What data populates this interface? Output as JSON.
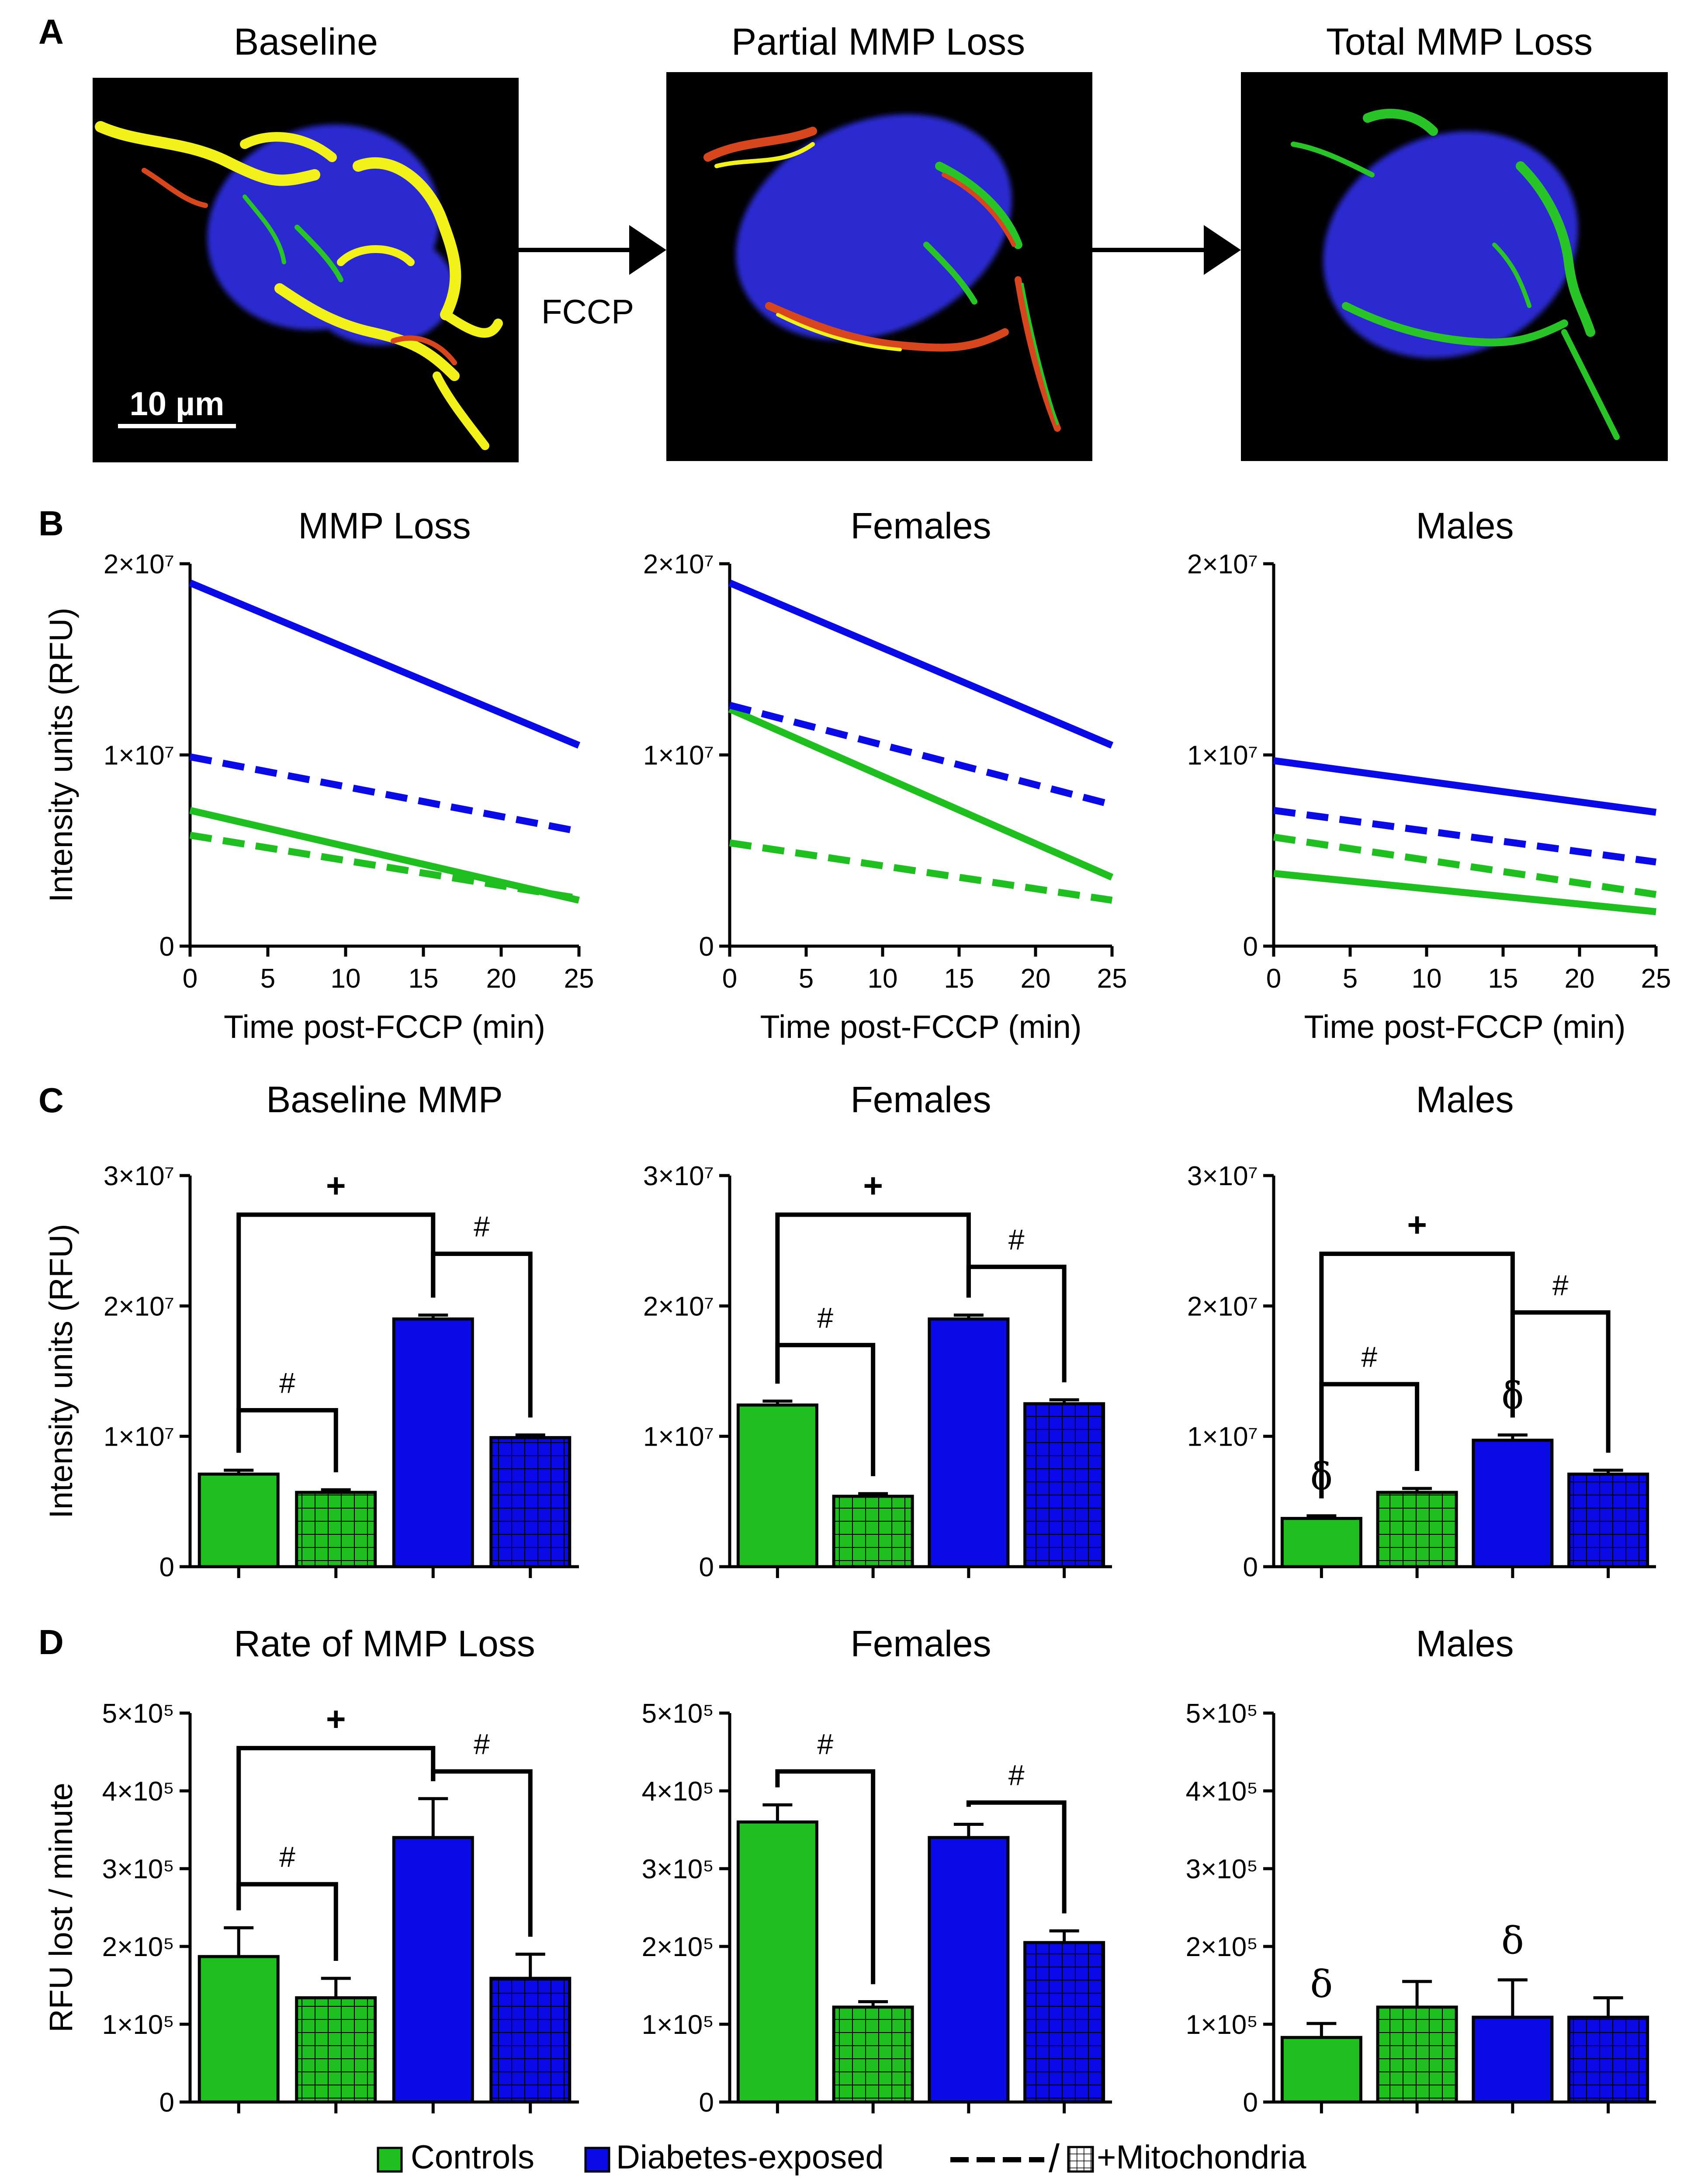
{
  "colors": {
    "control": "#1fbf1f",
    "diabetes": "#0a0ae6",
    "axis": "#000000",
    "micro_bg": "#000000",
    "nucleus": "#2a2ad0",
    "mito_yellow": "#f2f21a",
    "mito_red": "#d8461e",
    "mito_green": "#28c428"
  },
  "panel_letters": [
    "A",
    "B",
    "C",
    "D"
  ],
  "panel_a": {
    "images": [
      {
        "title": "Baseline"
      },
      {
        "title": "Partial MMP Loss"
      },
      {
        "title": "Total MMP Loss"
      }
    ],
    "arrow_label": "FCCP",
    "scale_bar_label": "10 µm"
  },
  "legend": {
    "controls": "Controls",
    "diabetes": "Diabetes-exposed",
    "mito_slash": "/",
    "mito_label": "+Mitochondria"
  },
  "chart_data": [
    {
      "panel": "B",
      "type": "line",
      "title": "MMP Loss",
      "xlabel": "Time post-FCCP (min)",
      "ylabel": "Intensity units (RFU)",
      "xlim": [
        0,
        25
      ],
      "ylim": [
        0,
        20000000
      ],
      "xticks": [
        "0",
        "5",
        "10",
        "15",
        "20",
        "25"
      ],
      "yticks": [
        "0",
        "1×10⁷",
        "2×10⁷"
      ],
      "series": [
        {
          "name": "Controls",
          "color": "control",
          "dashed": false,
          "x": [
            0,
            25
          ],
          "y": [
            7100000,
            2400000
          ]
        },
        {
          "name": "Controls +Mitochondria",
          "color": "control",
          "dashed": true,
          "x": [
            0,
            25
          ],
          "y": [
            5800000,
            2500000
          ]
        },
        {
          "name": "Diabetes-exposed",
          "color": "diabetes",
          "dashed": false,
          "x": [
            0,
            25
          ],
          "y": [
            19000000,
            10500000
          ]
        },
        {
          "name": "Diabetes-exposed +Mitochondria",
          "color": "diabetes",
          "dashed": true,
          "x": [
            0,
            25
          ],
          "y": [
            9900000,
            6000000
          ]
        }
      ]
    },
    {
      "panel": "B",
      "type": "line",
      "title": "Females",
      "xlabel": "Time post-FCCP (min)",
      "ylabel": "",
      "xlim": [
        0,
        25
      ],
      "ylim": [
        0,
        20000000
      ],
      "xticks": [
        "0",
        "5",
        "10",
        "15",
        "20",
        "25"
      ],
      "yticks": [
        "0",
        "1×10⁷",
        "2×10⁷"
      ],
      "series": [
        {
          "name": "Controls",
          "color": "control",
          "dashed": false,
          "x": [
            0,
            25
          ],
          "y": [
            12400000,
            3600000
          ]
        },
        {
          "name": "Controls +Mitochondria",
          "color": "control",
          "dashed": true,
          "x": [
            0,
            25
          ],
          "y": [
            5400000,
            2400000
          ]
        },
        {
          "name": "Diabetes-exposed",
          "color": "diabetes",
          "dashed": false,
          "x": [
            0,
            25
          ],
          "y": [
            19000000,
            10500000
          ]
        },
        {
          "name": "Diabetes-exposed +Mitochondria",
          "color": "diabetes",
          "dashed": true,
          "x": [
            0,
            25
          ],
          "y": [
            12600000,
            7400000
          ]
        }
      ]
    },
    {
      "panel": "B",
      "type": "line",
      "title": "Males",
      "xlabel": "Time post-FCCP (min)",
      "ylabel": "",
      "xlim": [
        0,
        25
      ],
      "ylim": [
        0,
        20000000
      ],
      "xticks": [
        "0",
        "5",
        "10",
        "15",
        "20",
        "25"
      ],
      "yticks": [
        "0",
        "1×10⁷",
        "2×10⁷"
      ],
      "series": [
        {
          "name": "Controls",
          "color": "control",
          "dashed": false,
          "x": [
            0,
            25
          ],
          "y": [
            3800000,
            1800000
          ]
        },
        {
          "name": "Controls +Mitochondria",
          "color": "control",
          "dashed": true,
          "x": [
            0,
            25
          ],
          "y": [
            5700000,
            2700000
          ]
        },
        {
          "name": "Diabetes-exposed",
          "color": "diabetes",
          "dashed": false,
          "x": [
            0,
            25
          ],
          "y": [
            9700000,
            7000000
          ]
        },
        {
          "name": "Diabetes-exposed +Mitochondria",
          "color": "diabetes",
          "dashed": true,
          "x": [
            0,
            25
          ],
          "y": [
            7100000,
            4400000
          ]
        }
      ]
    },
    {
      "panel": "C",
      "type": "bar",
      "title": "Baseline MMP",
      "ylabel": "Intensity units (RFU)",
      "ylim": [
        0,
        30000000
      ],
      "yticks": [
        "0",
        "1×10⁷",
        "2×10⁷",
        "3×10⁷"
      ],
      "bars": [
        {
          "group": "Controls",
          "color": "control",
          "hatched": false,
          "value": 7100000,
          "err": 300000
        },
        {
          "group": "Controls +Mitochondria",
          "color": "control",
          "hatched": true,
          "value": 5700000,
          "err": 200000
        },
        {
          "group": "Diabetes-exposed",
          "color": "diabetes",
          "hatched": false,
          "value": 19000000,
          "err": 300000
        },
        {
          "group": "Diabetes-exposed +Mitochondria",
          "color": "diabetes",
          "hatched": true,
          "value": 9900000,
          "err": 200000
        }
      ],
      "brackets": [
        {
          "from": 0,
          "to": 1,
          "level": 12000000,
          "label": "#"
        },
        {
          "from": 2,
          "to": 3,
          "level": 24000000,
          "label": "#"
        },
        {
          "from": 0,
          "to": 2,
          "level": 27000000,
          "label": "+"
        }
      ],
      "marks": []
    },
    {
      "panel": "C",
      "type": "bar",
      "title": "Females",
      "ylabel": "",
      "ylim": [
        0,
        30000000
      ],
      "yticks": [
        "0",
        "1×10⁷",
        "2×10⁷",
        "3×10⁷"
      ],
      "bars": [
        {
          "group": "Controls",
          "color": "control",
          "hatched": false,
          "value": 12400000,
          "err": 300000
        },
        {
          "group": "Controls +Mitochondria",
          "color": "control",
          "hatched": true,
          "value": 5400000,
          "err": 200000
        },
        {
          "group": "Diabetes-exposed",
          "color": "diabetes",
          "hatched": false,
          "value": 19000000,
          "err": 300000
        },
        {
          "group": "Diabetes-exposed +Mitochondria",
          "color": "diabetes",
          "hatched": true,
          "value": 12500000,
          "err": 300000
        }
      ],
      "brackets": [
        {
          "from": 0,
          "to": 1,
          "level": 17000000,
          "label": "#"
        },
        {
          "from": 2,
          "to": 3,
          "level": 23000000,
          "label": "#"
        },
        {
          "from": 0,
          "to": 2,
          "level": 27000000,
          "label": "+"
        }
      ],
      "marks": []
    },
    {
      "panel": "C",
      "type": "bar",
      "title": "Males",
      "ylabel": "",
      "ylim": [
        0,
        30000000
      ],
      "yticks": [
        "0",
        "1×10⁷",
        "2×10⁷",
        "3×10⁷"
      ],
      "bars": [
        {
          "group": "Controls",
          "color": "control",
          "hatched": false,
          "value": 3700000,
          "err": 200000
        },
        {
          "group": "Controls +Mitochondria",
          "color": "control",
          "hatched": true,
          "value": 5700000,
          "err": 300000
        },
        {
          "group": "Diabetes-exposed",
          "color": "diabetes",
          "hatched": false,
          "value": 9700000,
          "err": 400000
        },
        {
          "group": "Diabetes-exposed +Mitochondria",
          "color": "diabetes",
          "hatched": true,
          "value": 7100000,
          "err": 300000
        }
      ],
      "brackets": [
        {
          "from": 0,
          "to": 1,
          "level": 14000000,
          "label": "#"
        },
        {
          "from": 2,
          "to": 3,
          "level": 19500000,
          "label": "#"
        },
        {
          "from": 0,
          "to": 2,
          "level": 24000000,
          "label": "+"
        }
      ],
      "marks": [
        {
          "bar": 0,
          "label": "δ"
        },
        {
          "bar": 2,
          "label": "δ"
        }
      ]
    },
    {
      "panel": "D",
      "type": "bar",
      "title": "Rate of MMP Loss",
      "ylabel": "RFU lost / minute",
      "ylim": [
        0,
        500000
      ],
      "yticks": [
        "0",
        "1×10⁵",
        "2×10⁵",
        "3×10⁵",
        "4×10⁵",
        "5×10⁵"
      ],
      "bars": [
        {
          "group": "Controls",
          "color": "control",
          "hatched": false,
          "value": 187000,
          "err": 37000
        },
        {
          "group": "Controls +Mitochondria",
          "color": "control",
          "hatched": true,
          "value": 134000,
          "err": 25000
        },
        {
          "group": "Diabetes-exposed",
          "color": "diabetes",
          "hatched": false,
          "value": 340000,
          "err": 50000
        },
        {
          "group": "Diabetes-exposed +Mitochondria",
          "color": "diabetes",
          "hatched": true,
          "value": 159000,
          "err": 31000
        }
      ],
      "brackets": [
        {
          "from": 0,
          "to": 1,
          "level": 280000,
          "label": "#"
        },
        {
          "from": 2,
          "to": 3,
          "level": 425000,
          "label": "#"
        },
        {
          "from": 0,
          "to": 2,
          "level": 455000,
          "label": "+"
        }
      ],
      "marks": []
    },
    {
      "panel": "D",
      "type": "bar",
      "title": "Females",
      "ylabel": "",
      "ylim": [
        0,
        500000
      ],
      "yticks": [
        "0",
        "1×10⁵",
        "2×10⁵",
        "3×10⁵",
        "4×10⁵",
        "5×10⁵"
      ],
      "bars": [
        {
          "group": "Controls",
          "color": "control",
          "hatched": false,
          "value": 360000,
          "err": 22000
        },
        {
          "group": "Controls +Mitochondria",
          "color": "control",
          "hatched": true,
          "value": 122000,
          "err": 7000
        },
        {
          "group": "Diabetes-exposed",
          "color": "diabetes",
          "hatched": false,
          "value": 340000,
          "err": 17000
        },
        {
          "group": "Diabetes-exposed +Mitochondria",
          "color": "diabetes",
          "hatched": true,
          "value": 205000,
          "err": 15000
        }
      ],
      "brackets": [
        {
          "from": 0,
          "to": 1,
          "level": 425000,
          "label": "#"
        },
        {
          "from": 2,
          "to": 3,
          "level": 385000,
          "label": "#"
        }
      ],
      "marks": []
    },
    {
      "panel": "D",
      "type": "bar",
      "title": "Males",
      "ylabel": "",
      "ylim": [
        0,
        500000
      ],
      "yticks": [
        "0",
        "1×10⁵",
        "2×10⁵",
        "3×10⁵",
        "4×10⁵",
        "5×10⁵"
      ],
      "bars": [
        {
          "group": "Controls",
          "color": "control",
          "hatched": false,
          "value": 83000,
          "err": 18000
        },
        {
          "group": "Controls +Mitochondria",
          "color": "control",
          "hatched": true,
          "value": 122000,
          "err": 33000
        },
        {
          "group": "Diabetes-exposed",
          "color": "diabetes",
          "hatched": false,
          "value": 109000,
          "err": 48000
        },
        {
          "group": "Diabetes-exposed +Mitochondria",
          "color": "diabetes",
          "hatched": true,
          "value": 109000,
          "err": 25000
        }
      ],
      "brackets": [],
      "marks": [
        {
          "bar": 0,
          "label": "δ"
        },
        {
          "bar": 2,
          "label": "δ"
        }
      ]
    }
  ]
}
